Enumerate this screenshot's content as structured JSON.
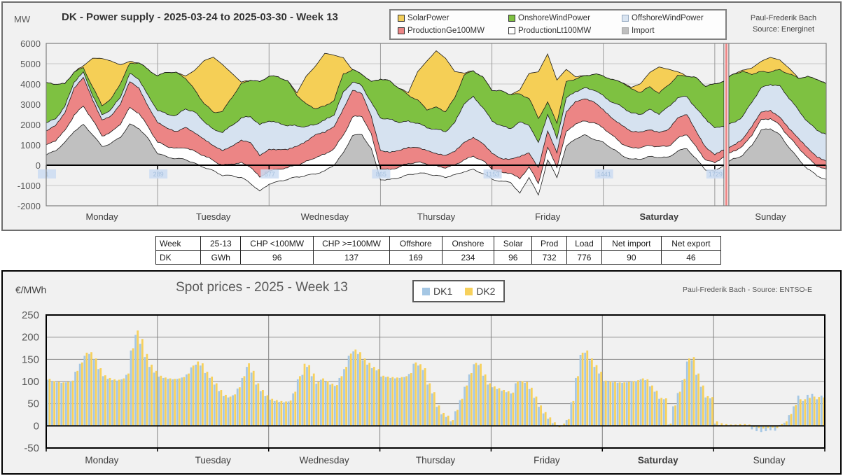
{
  "chart_data": [
    {
      "type": "area",
      "title": "DK - Power supply - 2025-03-24 to 2025-03-30 - Week 13",
      "unit": "MW",
      "attribution_line1": "Paul-Frederik Bach",
      "attribution_line2": "Source: Energinet",
      "ylim": [
        -2000,
        6000
      ],
      "y_step": 1000,
      "grid": true,
      "legend_position": "top",
      "legend": [
        {
          "label": "SolarPower",
          "chip": "#F2CE5A",
          "chip_border": "#333333"
        },
        {
          "label": "OnshoreWindPower",
          "chip": "#7EC141",
          "chip_border": "#333333"
        },
        {
          "label": "OffshoreWindPower",
          "chip": "#D9E4F1",
          "chip_border": "#95A9C0"
        },
        {
          "label": "ProductionGe100MW",
          "chip": "#EC8585",
          "chip_border": "#333333"
        },
        {
          "label": "ProductionLt100MW",
          "chip": "#FFFFFF",
          "chip_border": "#333333"
        },
        {
          "label": "Import",
          "chip": "#BFBFBF",
          "chip_border": "#A6A6A6"
        }
      ],
      "days": [
        "Monday",
        "Tuesday",
        "Wednesday",
        "Thursday",
        "Friday",
        "Saturday",
        "Sunday"
      ],
      "bold_days": [
        "Saturday"
      ],
      "hour_step": 2,
      "noise_amplitude_mw": 55,
      "quarter_hour_tick_labels": [
        "1",
        "289",
        "577",
        "865",
        "1153",
        "1441",
        "1729"
      ],
      "glitch_spike": {
        "hour": 146.5,
        "from": -2100,
        "to": 6100
      },
      "series": [
        {
          "name": "Import",
          "color": "#C0C0C0",
          "values": [
            500,
            700,
            1100,
            1700,
            2000,
            1500,
            900,
            1100,
            1400,
            2000,
            1800,
            1300,
            600,
            400,
            300,
            300,
            100,
            -100,
            -300,
            -500,
            -500,
            -600,
            -900,
            -1300,
            -900,
            -800,
            -700,
            -600,
            -500,
            -400,
            -300,
            0,
            600,
            1500,
            1500,
            800,
            -700,
            -700,
            -600,
            -500,
            -400,
            -400,
            -500,
            -600,
            -500,
            -300,
            -200,
            -400,
            -700,
            -800,
            -800,
            -1400,
            -600,
            -1500,
            300,
            -600,
            900,
            1300,
            1500,
            1300,
            1100,
            800,
            500,
            300,
            300,
            400,
            400,
            400,
            700,
            800,
            300,
            -200,
            -300,
            0,
            300,
            500,
            1000,
            1700,
            1800,
            1500,
            900,
            300,
            -200,
            -500,
            -700
          ]
        },
        {
          "name": "ProductionLt100MW",
          "color": "#FFFFFF",
          "values": [
            450,
            500,
            600,
            800,
            900,
            700,
            550,
            550,
            650,
            800,
            750,
            600,
            550,
            500,
            500,
            600,
            600,
            550,
            500,
            500,
            600,
            700,
            800,
            700,
            650,
            600,
            550,
            600,
            700,
            800,
            800,
            800,
            900,
            900,
            900,
            700,
            550,
            500,
            500,
            550,
            550,
            500,
            450,
            450,
            500,
            600,
            650,
            600,
            500,
            450,
            450,
            700,
            500,
            600,
            600,
            500,
            700,
            750,
            700,
            800,
            700,
            650,
            600,
            550,
            550,
            550,
            550,
            550,
            600,
            700,
            600,
            500,
            400,
            400,
            400,
            450,
            500,
            500,
            500,
            500,
            500,
            550,
            550,
            500,
            500
          ]
        },
        {
          "name": "ProductionGe100MW",
          "color": "#EC8585",
          "values": [
            700,
            750,
            900,
            1300,
            1400,
            1000,
            800,
            800,
            950,
            1300,
            1250,
            1000,
            950,
            900,
            850,
            1000,
            900,
            800,
            750,
            750,
            850,
            1100,
            1200,
            1100,
            1050,
            950,
            900,
            950,
            1000,
            1100,
            1100,
            1100,
            1300,
            1300,
            1100,
            900,
            900,
            850,
            800,
            800,
            750,
            650,
            600,
            600,
            700,
            850,
            900,
            850,
            800,
            700,
            650,
            1100,
            700,
            800,
            800,
            700,
            1000,
            1100,
            1100,
            1000,
            900,
            850,
            900,
            800,
            750,
            800,
            700,
            800,
            1000,
            1000,
            800,
            600,
            400,
            350,
            300,
            350,
            400,
            400,
            400,
            400,
            400,
            450,
            500,
            450,
            400
          ]
        },
        {
          "name": "OffshoreWindPower",
          "color": "#D6E2F0",
          "values": [
            400,
            350,
            300,
            300,
            250,
            250,
            250,
            300,
            350,
            400,
            450,
            500,
            600,
            700,
            800,
            900,
            1000,
            900,
            800,
            900,
            1000,
            1100,
            1300,
            1500,
            1400,
            1300,
            1200,
            1000,
            700,
            500,
            600,
            600,
            800,
            400,
            400,
            700,
            1600,
            1600,
            1400,
            1300,
            1200,
            1100,
            1200,
            1200,
            1400,
            1900,
            2000,
            1800,
            1600,
            1600,
            1500,
            1700,
            1400,
            1200,
            800,
            700,
            700,
            500,
            500,
            600,
            700,
            800,
            900,
            900,
            900,
            1000,
            900,
            1100,
            1000,
            900,
            1100,
            1400,
            1300,
            1200,
            1100,
            1100,
            1200,
            1200,
            1300,
            1500,
            1500,
            1400,
            1300,
            1300,
            1300
          ]
        },
        {
          "name": "OnshoreWindPower",
          "color": "#7EC141",
          "values": [
            2000,
            1700,
            1100,
            500,
            250,
            400,
            450,
            500,
            700,
            500,
            800,
            1300,
            1700,
            2100,
            2100,
            1500,
            1100,
            900,
            850,
            1000,
            1400,
            1700,
            1800,
            2100,
            2200,
            2300,
            2200,
            1500,
            1100,
            800,
            700,
            700,
            900,
            600,
            600,
            1000,
            1900,
            1900,
            1700,
            1300,
            1100,
            900,
            1100,
            1000,
            1200,
            1400,
            1300,
            1500,
            1500,
            1700,
            1700,
            1400,
            1300,
            1200,
            600,
            800,
            800,
            600,
            600,
            800,
            1000,
            1100,
            1200,
            1200,
            1100,
            1100,
            1000,
            1100,
            1100,
            1000,
            1500,
            1600,
            2200,
            2200,
            2400,
            2200,
            1400,
            800,
            600,
            800,
            1200,
            1600,
            2200,
            2500,
            2500
          ]
        },
        {
          "name": "SolarPower",
          "color": "#F5CF56",
          "values": [
            0,
            0,
            0,
            0,
            100,
            1400,
            2300,
            1900,
            900,
            100,
            0,
            0,
            0,
            0,
            0,
            100,
            1000,
            2100,
            2700,
            2300,
            1200,
            100,
            0,
            0,
            0,
            0,
            0,
            100,
            1400,
            2100,
            2600,
            2200,
            800,
            0,
            0,
            0,
            0,
            0,
            0,
            100,
            1400,
            2400,
            2800,
            2600,
            1300,
            100,
            0,
            0,
            0,
            0,
            0,
            200,
            1200,
            2300,
            2400,
            2100,
            600,
            100,
            0,
            0,
            0,
            0,
            0,
            100,
            400,
            700,
            1300,
            800,
            200,
            0,
            0,
            0,
            0,
            0,
            0,
            100,
            300,
            500,
            700,
            500,
            300,
            0,
            0,
            0,
            0
          ]
        }
      ]
    },
    {
      "type": "table",
      "headers": [
        "Week",
        "25-13",
        "CHP <100MW",
        "CHP >=100MW",
        "Offshore",
        "Onshore",
        "Solar",
        "Prod",
        "Load",
        "Net import",
        "Net export"
      ],
      "rows": [
        [
          "DK",
          "GWh",
          "96",
          "137",
          "169",
          "234",
          "96",
          "732",
          "776",
          "90",
          "46"
        ]
      ]
    },
    {
      "type": "bar",
      "title": "Spot prices - 2025 - Week 13",
      "unit": "€/MWh",
      "attribution": "Paul-Frederik Bach - Source: ENTSO-E",
      "ylim": [
        -50,
        250
      ],
      "y_step": 50,
      "grid": true,
      "legend_position": "top",
      "days": [
        "Monday",
        "Tuesday",
        "Wednesday",
        "Thursday",
        "Friday",
        "Saturday",
        "Sunday"
      ],
      "bold_days": [
        "Saturday"
      ],
      "series": [
        {
          "name": "DK1",
          "color": "#A5C7E4",
          "values": [
            104,
            100,
            98,
            97,
            98,
            101,
            122,
            140,
            158,
            162,
            150,
            128,
            112,
            106,
            103,
            102,
            105,
            115,
            170,
            205,
            185,
            155,
            133,
            120,
            111,
            108,
            106,
            105,
            106,
            109,
            116,
            132,
            138,
            136,
            119,
            108,
            93,
            78,
            67,
            64,
            69,
            84,
            108,
            133,
            120,
            93,
            78,
            67,
            59,
            56,
            54,
            53,
            55,
            73,
            105,
            115,
            133,
            112,
            95,
            104,
            99,
            93,
            90,
            108,
            128,
            158,
            168,
            162,
            148,
            138,
            130,
            125,
            111,
            110,
            108,
            107,
            108,
            110,
            117,
            140,
            136,
            126,
            93,
            73,
            43,
            26,
            20,
            10,
            33,
            58,
            88,
            116,
            139,
            137,
            113,
            93,
            87,
            83,
            79,
            76,
            73,
            96,
            99,
            97,
            83,
            63,
            43,
            28,
            16,
            6,
            2,
            1,
            13,
            53,
            108,
            160,
            165,
            148,
            133,
            118,
            100,
            99,
            98,
            97,
            97,
            98,
            100,
            101,
            105,
            103,
            89,
            77,
            61,
            60,
            3,
            44,
            74,
            103,
            145,
            148,
            115,
            88,
            64,
            62,
            5,
            2,
            1,
            1,
            1,
            1,
            1,
            1,
            -8,
            -12,
            -14,
            -12,
            -10,
            -11,
            2,
            7,
            24,
            44,
            68,
            56,
            70,
            72,
            60,
            68
          ]
        },
        {
          "name": "DK2",
          "color": "#F7D15C",
          "values": [
            106,
            101,
            99,
            98,
            99,
            102,
            124,
            143,
            165,
            166,
            152,
            130,
            114,
            108,
            105,
            104,
            107,
            118,
            175,
            215,
            196,
            162,
            138,
            124,
            113,
            109,
            107,
            106,
            107,
            110,
            118,
            136,
            145,
            141,
            122,
            111,
            96,
            81,
            70,
            66,
            71,
            87,
            112,
            141,
            124,
            96,
            81,
            69,
            61,
            58,
            56,
            55,
            57,
            77,
            112,
            140,
            137,
            118,
            99,
            107,
            101,
            95,
            92,
            112,
            133,
            163,
            172,
            166,
            152,
            142,
            133,
            128,
            113,
            111,
            110,
            109,
            110,
            112,
            119,
            143,
            139,
            130,
            96,
            76,
            46,
            29,
            23,
            13,
            36,
            61,
            91,
            119,
            142,
            140,
            116,
            96,
            89,
            85,
            81,
            78,
            75,
            100,
            101,
            99,
            86,
            66,
            46,
            31,
            19,
            8,
            -3,
            5,
            15,
            56,
            112,
            165,
            170,
            152,
            137,
            122,
            102,
            100,
            99,
            98,
            98,
            99,
            101,
            103,
            107,
            105,
            91,
            79,
            63,
            62,
            5,
            46,
            77,
            106,
            152,
            155,
            118,
            91,
            67,
            65,
            10,
            6,
            4,
            3,
            3,
            4,
            4,
            3,
            -3,
            -5,
            -6,
            -5,
            -4,
            -5,
            4,
            10,
            27,
            47,
            60,
            60,
            63,
            66,
            65,
            64
          ]
        }
      ]
    }
  ]
}
